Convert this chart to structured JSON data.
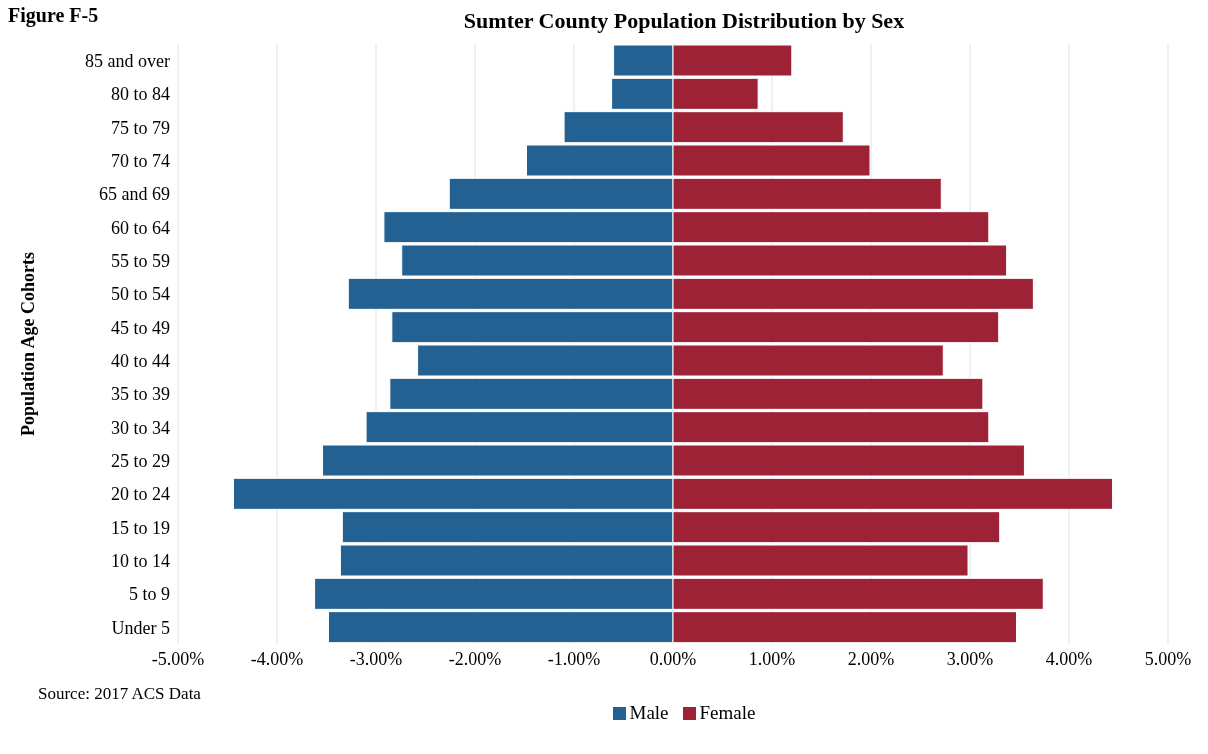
{
  "chart_data": {
    "type": "bar",
    "orientation": "horizontal",
    "stacked": true,
    "title": "Sumter County Population Distribution by Sex",
    "ylabel": "Population Age Cohorts",
    "annotations": [
      "Figure F-5",
      "Source: 2017 ACS Data"
    ],
    "categories": [
      "85 and over",
      "80 to 84",
      "75 to 79",
      "70 to 74",
      "65 and 69",
      "60 to 64",
      "55 to 59",
      "50 to 54",
      "45 to 49",
      "40 to 44",
      "35 to 39",
      "30 to 34",
      "25 to 29",
      "20 to 24",
      "15 to 19",
      "10 to 14",
      "5 to 9",
      "Under 5"
    ],
    "series": [
      {
        "name": "Male",
        "color": "#236192",
        "values": [
          -0.6,
          -0.62,
          -1.1,
          -1.48,
          -2.26,
          -2.92,
          -2.74,
          -3.28,
          -2.84,
          -2.58,
          -2.86,
          -3.1,
          -3.54,
          -4.44,
          -3.34,
          -3.36,
          -3.62,
          -3.48
        ]
      },
      {
        "name": "Female",
        "color": "#9e2236",
        "values": [
          1.2,
          0.86,
          1.72,
          1.99,
          2.71,
          3.19,
          3.37,
          3.64,
          3.29,
          2.73,
          3.13,
          3.19,
          3.55,
          4.44,
          3.3,
          2.98,
          3.74,
          3.47
        ]
      }
    ],
    "xlim": [
      -5,
      5
    ],
    "xticks": [
      {
        "value": -5,
        "label": "-5.00%"
      },
      {
        "value": -4,
        "label": "-4.00%"
      },
      {
        "value": -3,
        "label": "-3.00%"
      },
      {
        "value": -2,
        "label": "-2.00%"
      },
      {
        "value": -1,
        "label": "-1.00%"
      },
      {
        "value": 0,
        "label": "0.00%"
      },
      {
        "value": 1,
        "label": "1.00%"
      },
      {
        "value": 2,
        "label": "2.00%"
      },
      {
        "value": 3,
        "label": "3.00%"
      },
      {
        "value": 4,
        "label": "4.00%"
      },
      {
        "value": 5,
        "label": "5.00%"
      }
    ],
    "grid": "x",
    "legend": "bottom"
  }
}
